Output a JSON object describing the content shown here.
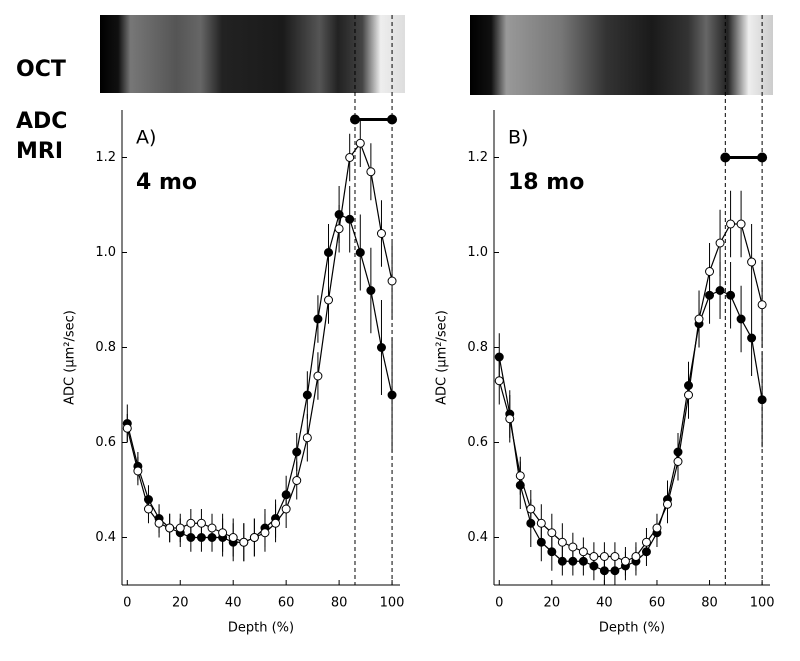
{
  "labels": {
    "oct": "OCT",
    "adc": "ADC",
    "mri": "MRI"
  },
  "chart_data": [
    {
      "type": "line",
      "panel": "A)",
      "subtitle": "4 mo",
      "xlabel": "Depth (%)",
      "ylabel": "ADC (μm²/sec)",
      "xlim": [
        -2,
        103
      ],
      "ylim": [
        0.3,
        1.3
      ],
      "xticks": [
        0,
        20,
        40,
        60,
        80,
        100
      ],
      "yticks": [
        {
          "value": 0.4,
          "label": "0.4"
        },
        {
          "value": 0.6,
          "label": "0.6"
        },
        {
          "value": 0.8,
          "label": "0.8"
        },
        {
          "value": 1.0,
          "label": "1.0"
        },
        {
          "value": 1.2,
          "label": "1.2"
        }
      ],
      "x": [
        0,
        4,
        8,
        12,
        16,
        20,
        24,
        28,
        32,
        36,
        40,
        44,
        48,
        52,
        56,
        60,
        64,
        68,
        72,
        76,
        80,
        84,
        88,
        92,
        96,
        100
      ],
      "bracket": {
        "x": [
          86,
          100
        ],
        "y": 1.28
      },
      "series": [
        {
          "color": "#000000",
          "marker": "filled",
          "values": [
            0.64,
            0.55,
            0.48,
            0.44,
            0.42,
            0.41,
            0.4,
            0.4,
            0.4,
            0.4,
            0.39,
            0.39,
            0.4,
            0.42,
            0.44,
            0.49,
            0.58,
            0.7,
            0.86,
            1.0,
            1.08,
            1.07,
            1.0,
            0.92,
            0.8,
            0.7
          ],
          "errors": [
            0.04,
            0.03,
            0.03,
            0.03,
            0.03,
            0.03,
            0.03,
            0.03,
            0.03,
            0.04,
            0.04,
            0.04,
            0.04,
            0.04,
            0.04,
            0.04,
            0.04,
            0.05,
            0.05,
            0.06,
            0.06,
            0.07,
            0.08,
            0.09,
            0.1,
            0.12
          ]
        },
        {
          "color": "#000000",
          "marker": "open",
          "values": [
            0.63,
            0.54,
            0.46,
            0.43,
            0.42,
            0.42,
            0.43,
            0.43,
            0.42,
            0.41,
            0.4,
            0.39,
            0.4,
            0.41,
            0.43,
            0.46,
            0.52,
            0.61,
            0.74,
            0.9,
            1.05,
            1.2,
            1.23,
            1.17,
            1.04,
            0.94
          ],
          "errors": [
            0.03,
            0.03,
            0.03,
            0.03,
            0.03,
            0.03,
            0.03,
            0.03,
            0.03,
            0.04,
            0.04,
            0.04,
            0.04,
            0.04,
            0.04,
            0.04,
            0.04,
            0.05,
            0.05,
            0.05,
            0.05,
            0.05,
            0.05,
            0.06,
            0.07,
            0.08
          ]
        }
      ]
    },
    {
      "type": "line",
      "panel": "B)",
      "subtitle": "18 mo",
      "xlabel": "Depth (%)",
      "ylabel": "ADC (μm²/sec)",
      "xlim": [
        -2,
        103
      ],
      "ylim": [
        0.3,
        1.3
      ],
      "xticks": [
        0,
        20,
        40,
        60,
        80,
        100
      ],
      "yticks": [
        {
          "value": 0.4,
          "label": "0.4"
        },
        {
          "value": 0.6,
          "label": "0.6"
        },
        {
          "value": 0.8,
          "label": "0.8"
        },
        {
          "value": 1.0,
          "label": "1.0"
        },
        {
          "value": 1.2,
          "label": "1.2"
        }
      ],
      "x": [
        0,
        4,
        8,
        12,
        16,
        20,
        24,
        28,
        32,
        36,
        40,
        44,
        48,
        52,
        56,
        60,
        64,
        68,
        72,
        76,
        80,
        84,
        88,
        92,
        96,
        100
      ],
      "bracket": {
        "x": [
          86,
          100
        ],
        "y": 1.2
      },
      "series": [
        {
          "color": "#000000",
          "marker": "filled",
          "values": [
            0.78,
            0.66,
            0.51,
            0.43,
            0.39,
            0.37,
            0.35,
            0.35,
            0.35,
            0.34,
            0.33,
            0.33,
            0.34,
            0.35,
            0.37,
            0.41,
            0.48,
            0.58,
            0.72,
            0.85,
            0.91,
            0.92,
            0.91,
            0.86,
            0.82,
            0.69
          ],
          "errors": [
            0.05,
            0.05,
            0.05,
            0.05,
            0.04,
            0.04,
            0.03,
            0.03,
            0.03,
            0.03,
            0.03,
            0.03,
            0.03,
            0.03,
            0.03,
            0.03,
            0.04,
            0.04,
            0.05,
            0.05,
            0.06,
            0.06,
            0.07,
            0.07,
            0.08,
            0.1
          ]
        },
        {
          "color": "#000000",
          "marker": "open",
          "values": [
            0.73,
            0.65,
            0.53,
            0.46,
            0.43,
            0.41,
            0.39,
            0.38,
            0.37,
            0.36,
            0.36,
            0.36,
            0.35,
            0.36,
            0.39,
            0.42,
            0.47,
            0.56,
            0.7,
            0.86,
            0.96,
            1.02,
            1.06,
            1.06,
            0.98,
            0.89
          ],
          "errors": [
            0.05,
            0.05,
            0.04,
            0.04,
            0.04,
            0.04,
            0.04,
            0.03,
            0.03,
            0.03,
            0.03,
            0.03,
            0.03,
            0.03,
            0.03,
            0.03,
            0.04,
            0.04,
            0.05,
            0.06,
            0.06,
            0.07,
            0.07,
            0.07,
            0.08,
            0.09
          ]
        }
      ]
    }
  ]
}
